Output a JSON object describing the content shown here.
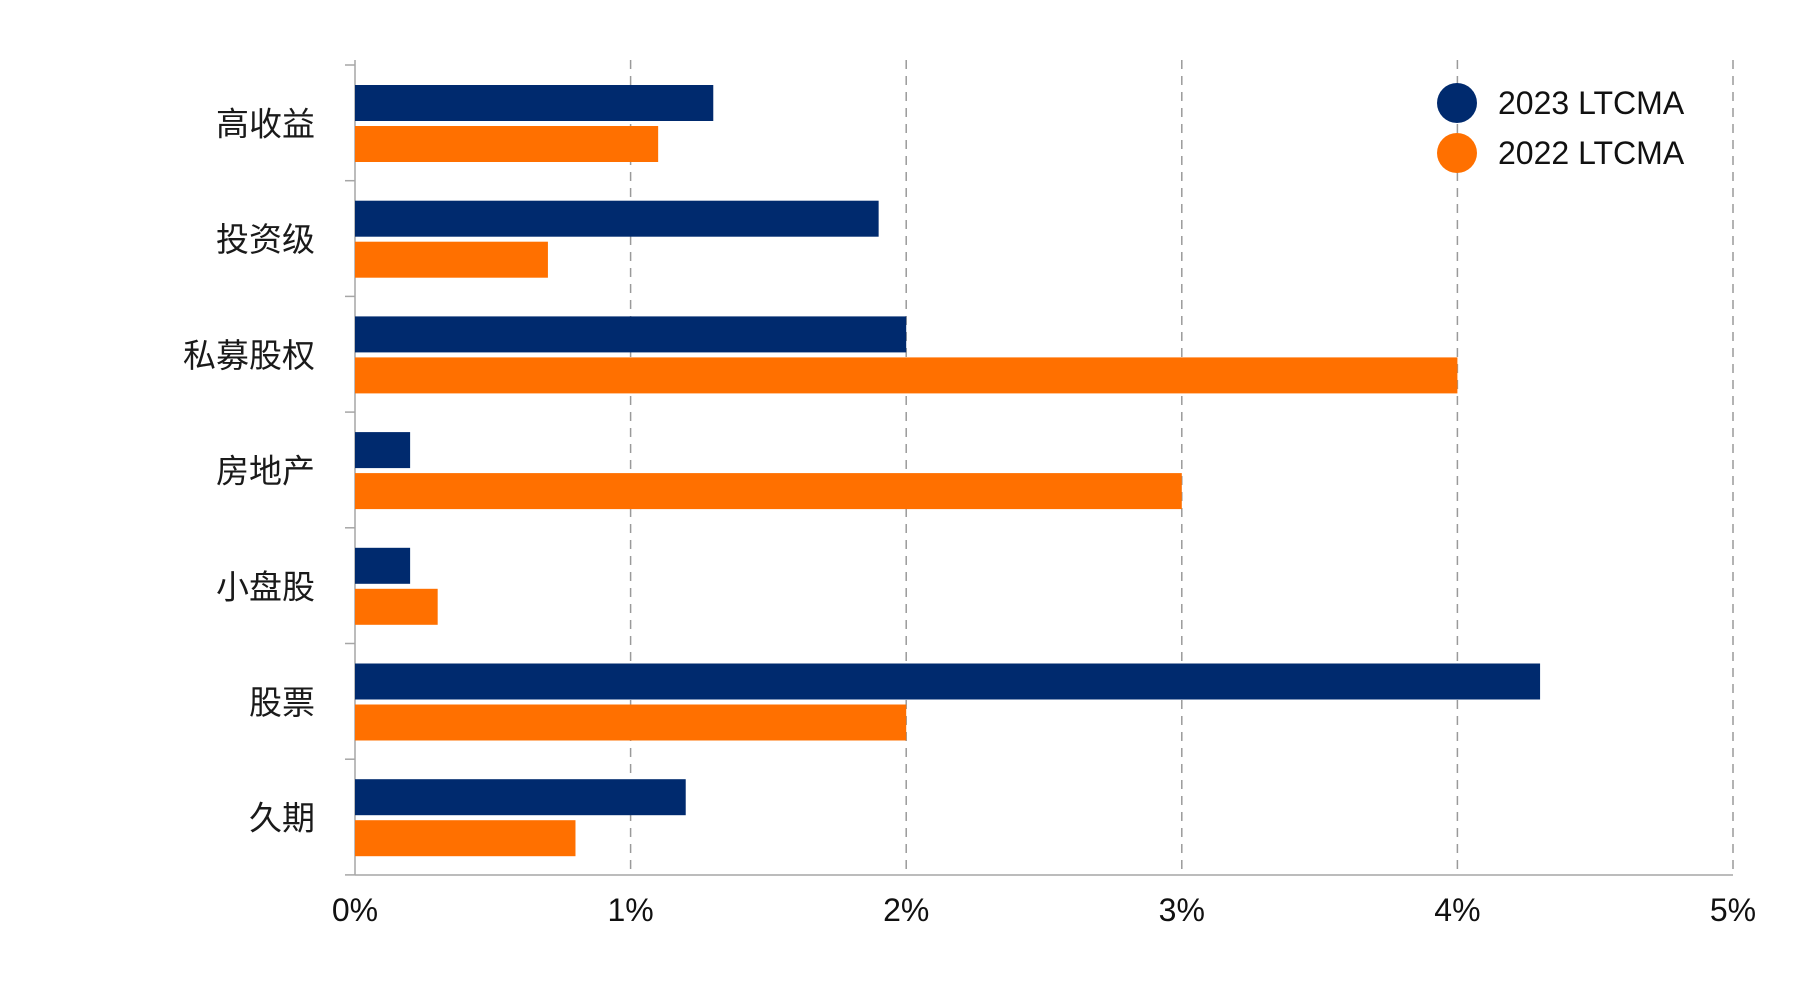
{
  "chart_data": {
    "type": "bar",
    "orientation": "horizontal",
    "categories": [
      "高收益",
      "投资级",
      "私募股权",
      "房地产",
      "小盘股",
      "股票",
      "久期"
    ],
    "series": [
      {
        "name": "2023 LTCMA",
        "color": "#002A6E",
        "values": [
          1.3,
          1.9,
          2.0,
          0.2,
          0.2,
          4.3,
          1.2
        ]
      },
      {
        "name": "2022 LTCMA",
        "color": "#FF7000",
        "values": [
          1.1,
          0.7,
          4.0,
          3.0,
          0.3,
          2.0,
          0.8
        ]
      }
    ],
    "xticks": [
      "0%",
      "1%",
      "2%",
      "3%",
      "4%",
      "5%"
    ],
    "xlim": [
      0,
      5
    ],
    "unit": "%",
    "grid": "vertical-dashed",
    "legend_position": "top-right"
  }
}
